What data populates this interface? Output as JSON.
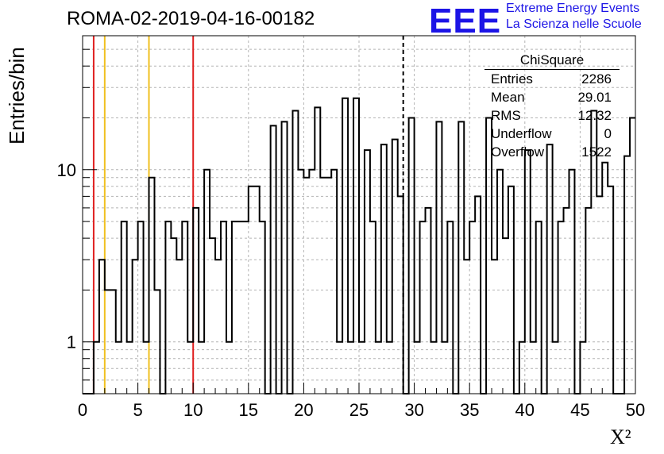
{
  "header": {
    "title": "ROMA-02-2019-04-16-00182",
    "logo_text": "EEE",
    "logo_line1": "Extreme Energy Events",
    "logo_line2": "La Scienza nelle Scuole"
  },
  "stats_box": {
    "title": "ChiSquare",
    "rows": [
      {
        "label": "Entries",
        "value": "2286"
      },
      {
        "label": "Mean",
        "value": "29.01"
      },
      {
        "label": "RMS",
        "value": "12.32"
      },
      {
        "label": "Underflow",
        "value": "0"
      },
      {
        "label": "Overflow",
        "value": "1522"
      }
    ]
  },
  "colors": {
    "red_marker": "#e02020",
    "yellow_marker": "#f0c020",
    "histogram": "#000000",
    "grid": "#b4b4b4",
    "logo": "#1c14e6"
  },
  "chart_data": {
    "type": "histogram",
    "title": "ROMA-02-2019-04-16-00182",
    "xlabel": "X²",
    "ylabel": "Entries/bin",
    "xlim": [
      0,
      50
    ],
    "ylim": [
      0.5,
      60
    ],
    "yscale": "log",
    "grid": true,
    "bin_width": 0.5,
    "x_ticks": [
      0,
      5,
      10,
      15,
      20,
      25,
      30,
      35,
      40,
      45,
      50
    ],
    "y_ticks": [
      1,
      10
    ],
    "values": [
      0,
      0,
      1,
      3,
      2,
      2,
      1,
      5,
      1,
      3,
      5,
      1,
      9,
      2,
      0,
      5,
      4,
      3,
      5,
      1,
      6,
      1,
      10,
      4,
      3,
      5,
      1,
      5,
      5,
      5,
      8,
      8,
      5,
      0,
      18,
      0,
      19,
      0,
      22,
      10,
      9,
      10,
      23,
      9,
      9,
      10,
      1,
      26,
      1,
      26,
      1,
      13,
      5,
      1,
      14,
      1,
      15,
      7,
      0,
      20,
      1,
      5,
      6,
      1,
      19,
      1,
      5,
      0,
      19,
      3,
      5,
      7,
      0,
      20,
      3,
      10,
      4,
      8,
      0,
      1,
      13,
      1,
      5,
      0,
      14,
      1,
      5,
      6,
      10,
      0,
      1,
      6,
      22,
      7,
      11,
      8,
      0,
      0,
      12,
      20
    ],
    "reference_lines": [
      {
        "x": 1,
        "color": "red"
      },
      {
        "x": 2,
        "color": "yellow"
      },
      {
        "x": 6,
        "color": "yellow"
      },
      {
        "x": 10,
        "color": "red"
      },
      {
        "x": 29,
        "color": "black",
        "style": "dashed"
      }
    ]
  }
}
